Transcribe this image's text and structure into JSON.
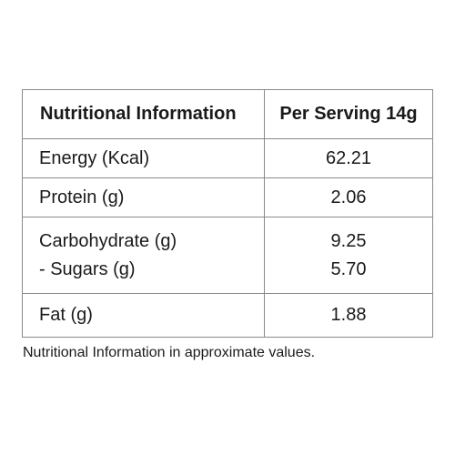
{
  "table": {
    "header": {
      "label": "Nutritional Information",
      "value": "Per Serving 14g"
    },
    "rows": [
      {
        "labels": [
          "Energy (Kcal)"
        ],
        "values": [
          "62.21"
        ]
      },
      {
        "labels": [
          "Protein (g)"
        ],
        "values": [
          "2.06"
        ]
      },
      {
        "labels": [
          "Carbohydrate (g)",
          "- Sugars (g)"
        ],
        "values": [
          "9.25",
          "5.70"
        ]
      },
      {
        "labels": [
          "Fat (g)"
        ],
        "values": [
          "1.88"
        ]
      }
    ]
  },
  "footnote": "Nutritional Information in approximate values."
}
